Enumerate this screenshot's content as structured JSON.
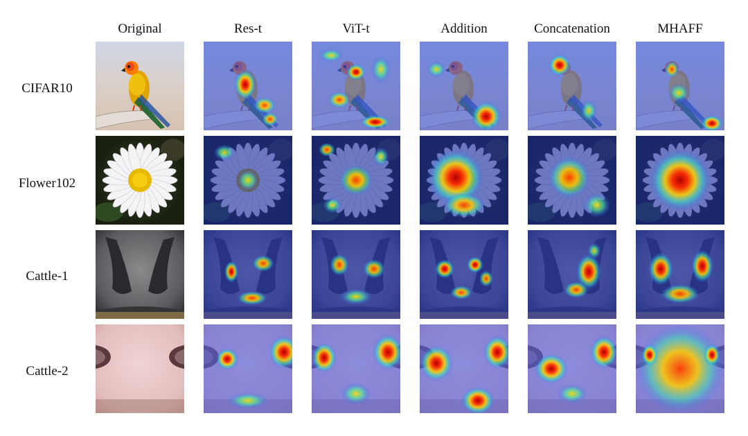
{
  "figure": {
    "columns": [
      "Original",
      "Res-t",
      "ViT-t",
      "Addition",
      "Concatenation",
      "MHAFF"
    ],
    "rows": [
      "CIFAR10",
      "Flower102",
      "Cattle-1",
      "Cattle-2"
    ]
  }
}
